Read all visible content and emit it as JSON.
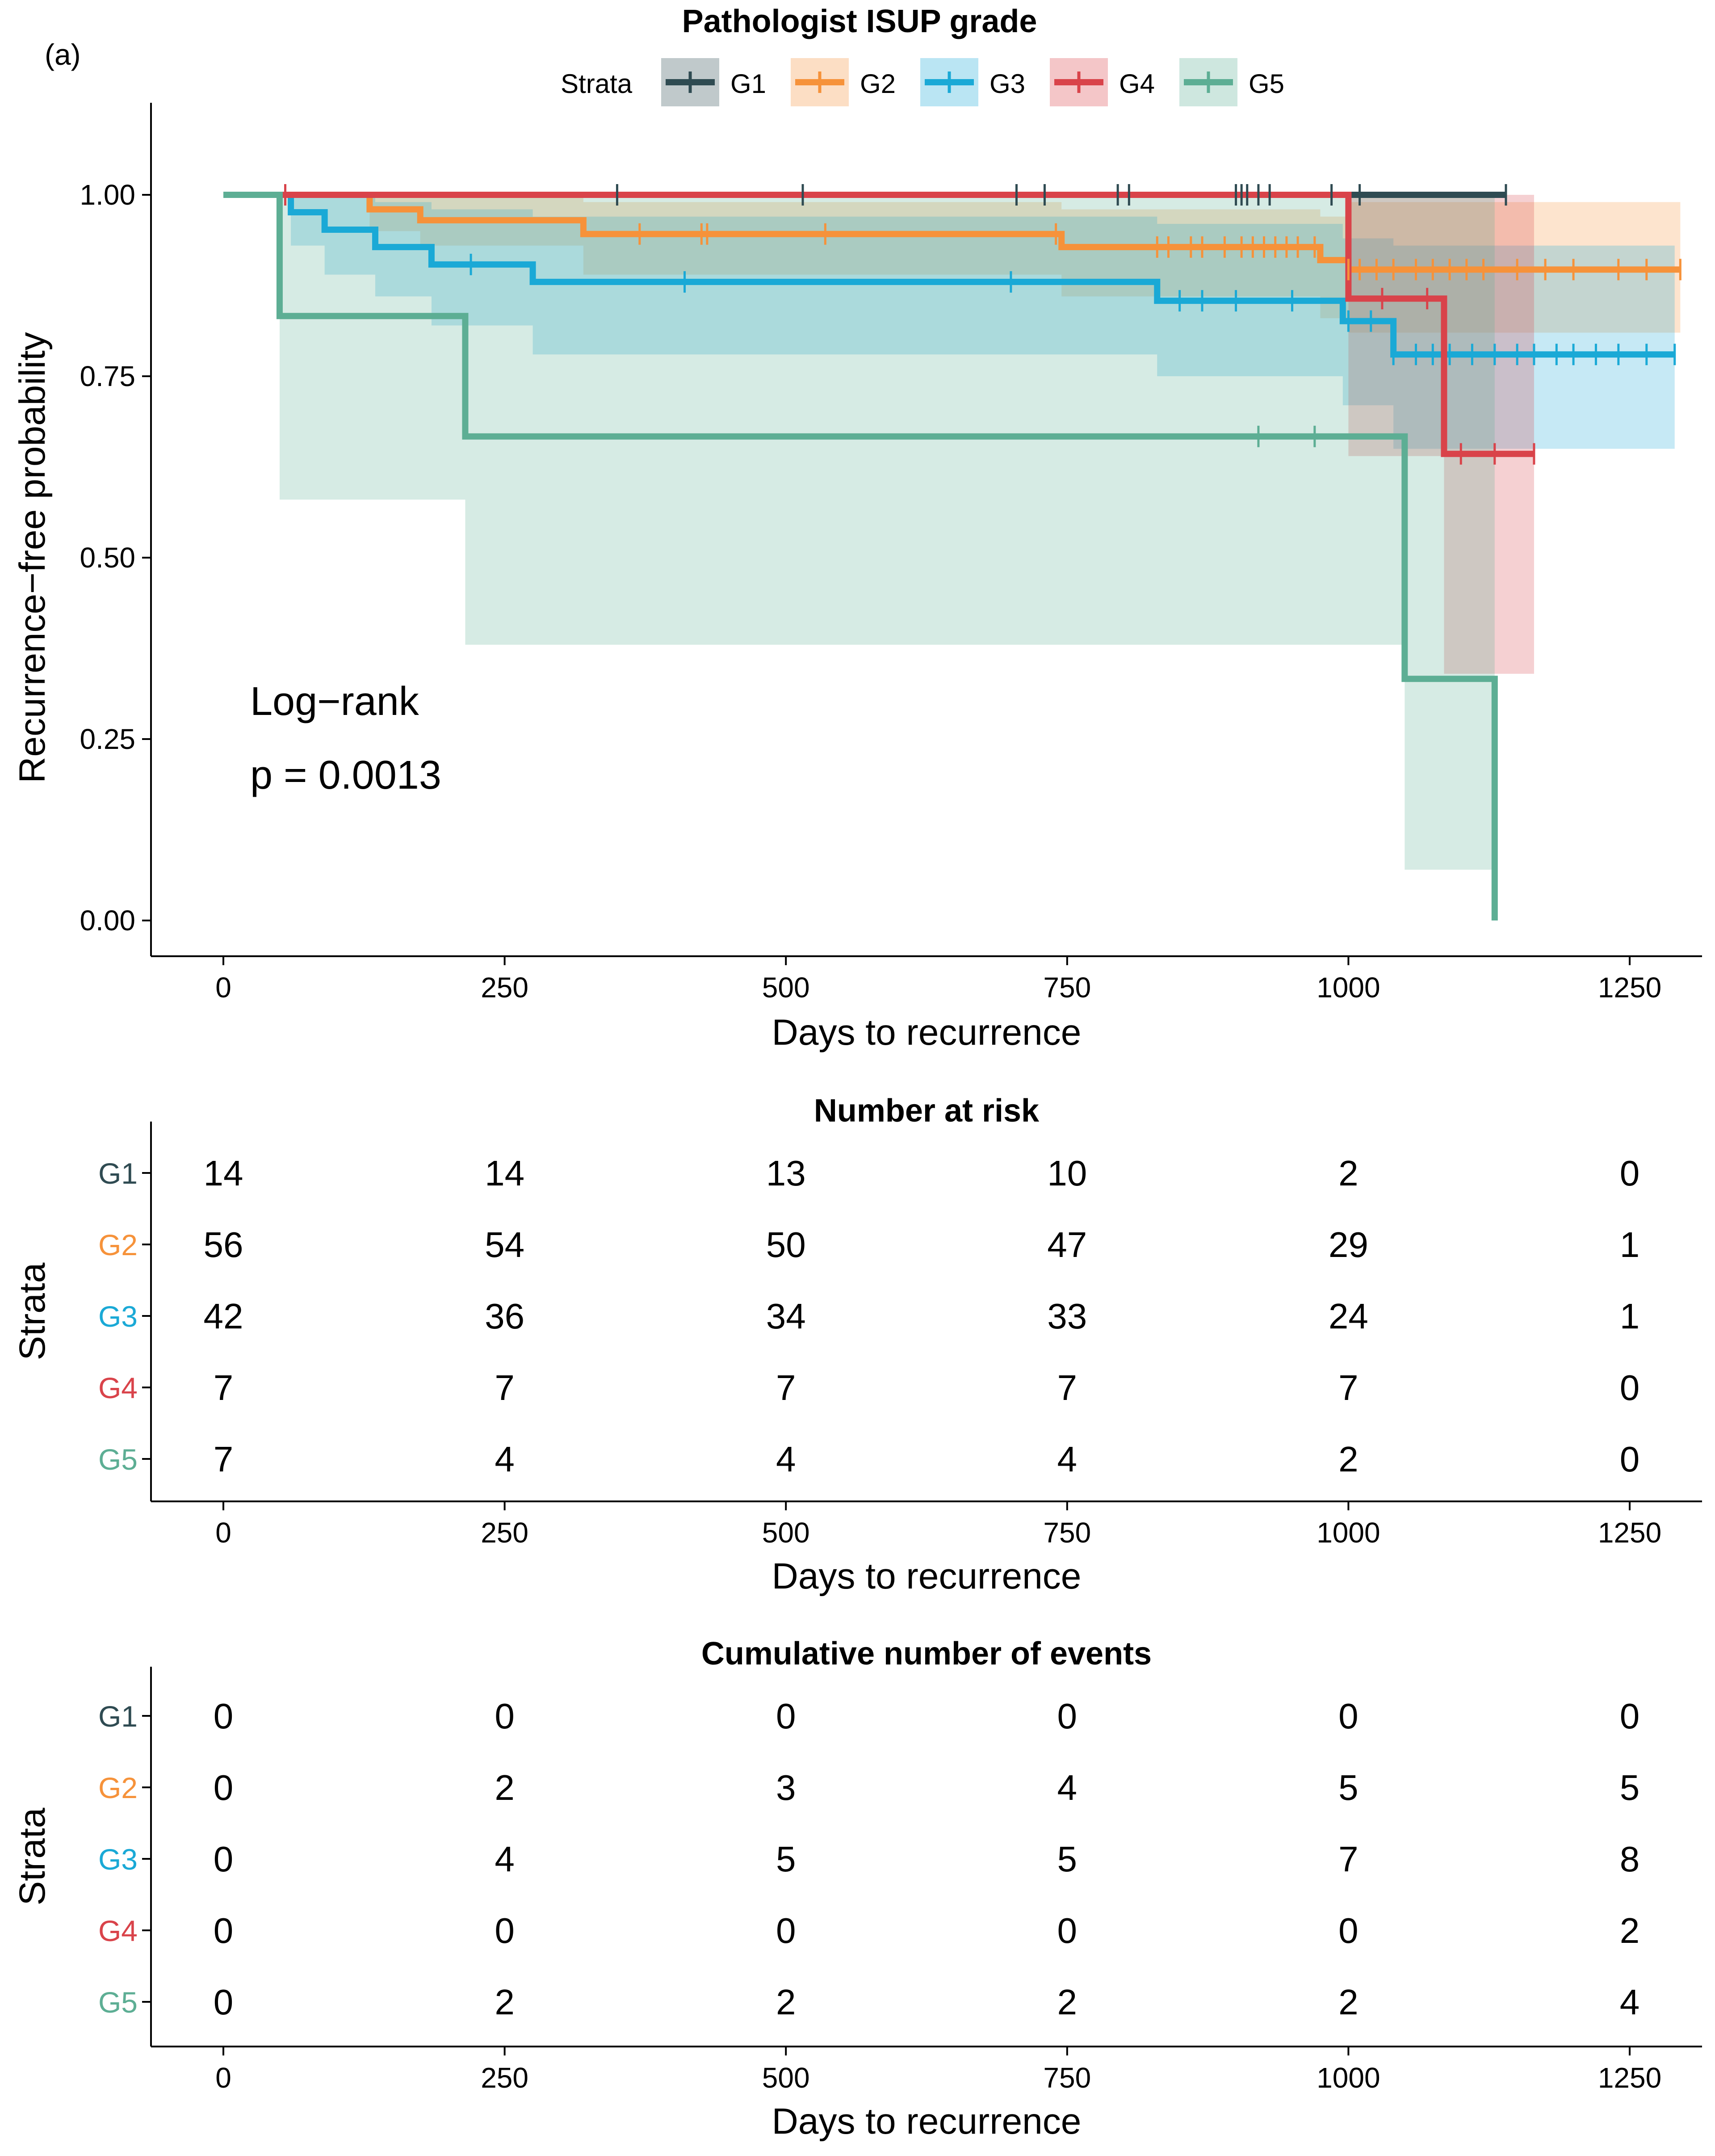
{
  "panel_label": "(a)",
  "legend": {
    "title": "Pathologist ISUP grade",
    "strata_label": "Strata"
  },
  "colors": {
    "G1": "#2f4b52",
    "G2": "#f6923a",
    "G3": "#1aa9d6",
    "G4": "#d9434a",
    "G5": "#5dae94"
  },
  "annotation": {
    "line1": "Log−rank",
    "line2": "p = 0.0013"
  },
  "chart_data": [
    {
      "type": "line",
      "subtype": "kaplan-meier",
      "xlabel": "Days to recurrence",
      "ylabel": "Recurrence−free probability",
      "xlim": [
        0,
        1300
      ],
      "ylim": [
        0,
        1
      ],
      "x_ticks": [
        "0",
        "250",
        "500",
        "750",
        "1000",
        "1250"
      ],
      "y_ticks": [
        "0.00",
        "0.25",
        "0.50",
        "0.75",
        "1.00"
      ],
      "series": [
        {
          "name": "G1",
          "steps": [
            [
              0,
              1
            ],
            [
              1140,
              1
            ]
          ],
          "band": [
            [
              0,
              1,
              1
            ],
            [
              1140,
              1,
              1
            ]
          ],
          "censors": [
            350,
            515,
            705,
            730,
            795,
            805,
            900,
            905,
            910,
            920,
            930,
            985,
            1010,
            1140
          ]
        },
        {
          "name": "G2",
          "steps": [
            [
              0,
              1
            ],
            [
              130,
              0.98
            ],
            [
              175,
              0.965
            ],
            [
              320,
              0.946
            ],
            [
              745,
              0.928
            ],
            [
              975,
              0.91
            ],
            [
              1000,
              0.897
            ],
            [
              1295,
              0.897
            ]
          ],
          "band": [
            [
              0,
              1,
              1
            ],
            [
              130,
              0.95,
              1
            ],
            [
              175,
              0.93,
              1
            ],
            [
              320,
              0.89,
              0.99
            ],
            [
              745,
              0.86,
              0.98
            ],
            [
              975,
              0.83,
              0.97
            ],
            [
              1000,
              0.81,
              0.99
            ],
            [
              1295,
              0.81,
              0.99
            ]
          ],
          "censors": [
            370,
            425,
            430,
            535,
            740,
            830,
            840,
            860,
            870,
            890,
            905,
            915,
            925,
            935,
            945,
            955,
            970,
            1000,
            1010,
            1025,
            1040,
            1060,
            1075,
            1090,
            1105,
            1120,
            1150,
            1175,
            1200,
            1240,
            1265,
            1295
          ]
        },
        {
          "name": "G3",
          "steps": [
            [
              0,
              1
            ],
            [
              60,
              0.976
            ],
            [
              90,
              0.952
            ],
            [
              135,
              0.928
            ],
            [
              185,
              0.904
            ],
            [
              275,
              0.88
            ],
            [
              830,
              0.854
            ],
            [
              995,
              0.826
            ],
            [
              1040,
              0.78
            ],
            [
              1290,
              0.78
            ]
          ],
          "band": [
            [
              0,
              1,
              1
            ],
            [
              60,
              0.93,
              1
            ],
            [
              90,
              0.89,
              1
            ],
            [
              135,
              0.86,
              0.99
            ],
            [
              185,
              0.82,
              0.98
            ],
            [
              275,
              0.78,
              0.97
            ],
            [
              830,
              0.75,
              0.96
            ],
            [
              995,
              0.71,
              0.94
            ],
            [
              1040,
              0.65,
              0.93
            ],
            [
              1290,
              0.65,
              0.93
            ]
          ],
          "censors": [
            55,
            220,
            410,
            700,
            850,
            870,
            900,
            950,
            1000,
            1020,
            1040,
            1060,
            1075,
            1090,
            1110,
            1130,
            1150,
            1165,
            1185,
            1200,
            1220,
            1240,
            1265,
            1290
          ]
        },
        {
          "name": "G4",
          "steps": [
            [
              0,
              1
            ],
            [
              1000,
              0.857
            ],
            [
              1085,
              0.643
            ],
            [
              1165,
              0.643
            ]
          ],
          "band": [
            [
              0,
              1,
              1
            ],
            [
              1000,
              0.64,
              1
            ],
            [
              1085,
              0.34,
              1
            ],
            [
              1165,
              0.34,
              1
            ]
          ],
          "censors": [
            55,
            1030,
            1070,
            1100,
            1130,
            1165
          ]
        },
        {
          "name": "G5",
          "steps": [
            [
              0,
              1
            ],
            [
              50,
              0.833
            ],
            [
              215,
              0.667
            ],
            [
              1050,
              0.333
            ],
            [
              1130,
              0
            ],
            [
              1130,
              0
            ]
          ],
          "band": [
            [
              0,
              1,
              1
            ],
            [
              50,
              0.58,
              1
            ],
            [
              215,
              0.38,
              1
            ],
            [
              1050,
              0.07,
              1
            ],
            [
              1130,
              0,
              0
            ]
          ],
          "censors": [
            920,
            970
          ]
        }
      ]
    },
    {
      "type": "table",
      "title": "Number at risk",
      "ylabel": "Strata",
      "xlabel": "Days to recurrence",
      "x_ticks": [
        "0",
        "250",
        "500",
        "750",
        "1000",
        "1250"
      ],
      "columns": [
        0,
        250,
        500,
        750,
        1000,
        1250
      ],
      "rows": [
        {
          "label": "G1",
          "values": [
            "14",
            "14",
            "13",
            "10",
            "2",
            "0"
          ]
        },
        {
          "label": "G2",
          "values": [
            "56",
            "54",
            "50",
            "47",
            "29",
            "1"
          ]
        },
        {
          "label": "G3",
          "values": [
            "42",
            "36",
            "34",
            "33",
            "24",
            "1"
          ]
        },
        {
          "label": "G4",
          "values": [
            "7",
            "7",
            "7",
            "7",
            "7",
            "0"
          ]
        },
        {
          "label": "G5",
          "values": [
            "7",
            "4",
            "4",
            "4",
            "2",
            "0"
          ]
        }
      ]
    },
    {
      "type": "table",
      "title": "Cumulative number of events",
      "ylabel": "Strata",
      "xlabel": "Days to recurrence",
      "x_ticks": [
        "0",
        "250",
        "500",
        "750",
        "1000",
        "1250"
      ],
      "columns": [
        0,
        250,
        500,
        750,
        1000,
        1250
      ],
      "rows": [
        {
          "label": "G1",
          "values": [
            "0",
            "0",
            "0",
            "0",
            "0",
            "0"
          ]
        },
        {
          "label": "G2",
          "values": [
            "0",
            "2",
            "3",
            "4",
            "5",
            "5"
          ]
        },
        {
          "label": "G3",
          "values": [
            "0",
            "4",
            "5",
            "5",
            "7",
            "8"
          ]
        },
        {
          "label": "G4",
          "values": [
            "0",
            "0",
            "0",
            "0",
            "0",
            "2"
          ]
        },
        {
          "label": "G5",
          "values": [
            "0",
            "2",
            "2",
            "2",
            "2",
            "4"
          ]
        }
      ]
    }
  ]
}
